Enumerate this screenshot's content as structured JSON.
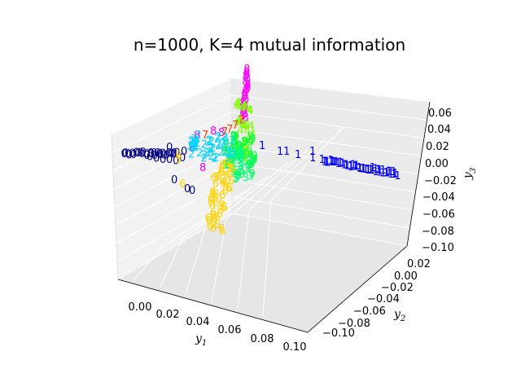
{
  "chart_data": {
    "type": "scatter3d",
    "title": "n=1000, K=4 mutual information",
    "axes": {
      "x": {
        "label": "y1",
        "ticks": [
          "0.00",
          "0.02",
          "0.04",
          "0.06",
          "0.08",
          "0.10"
        ]
      },
      "y": {
        "label": "y2",
        "ticks": [
          "−0.10",
          "−0.08",
          "−0.06",
          "−0.04",
          "−0.02",
          "0.00",
          "0.02"
        ]
      },
      "z": {
        "label": "y3",
        "ticks": [
          "−0.10",
          "−0.08",
          "−0.06",
          "−0.04",
          "−0.02",
          "0.00",
          "0.02",
          "0.04",
          "0.06"
        ]
      }
    },
    "markers": "digit labels 0-9",
    "class_colors": {
      "0": "#000080",
      "1": "#0000ff",
      "2": "#00d4ff",
      "3": "#00ff80",
      "4": "#80ff00",
      "5": "#ffd400",
      "6": "#ffd400",
      "7": "#ff4000",
      "8": "#ff00ff",
      "9": "#00ff40"
    },
    "clusters": [
      {
        "label": "0",
        "description": "arm along negative y1 direction"
      },
      {
        "label": "1",
        "description": "arm along positive y1 direction"
      },
      {
        "label": "6",
        "description": "arm downward in y3"
      },
      {
        "label": "8",
        "description": "arm upward in y3"
      },
      {
        "label": "2,3,4,5,7,9",
        "description": "central cluster"
      }
    ],
    "grid": true
  }
}
